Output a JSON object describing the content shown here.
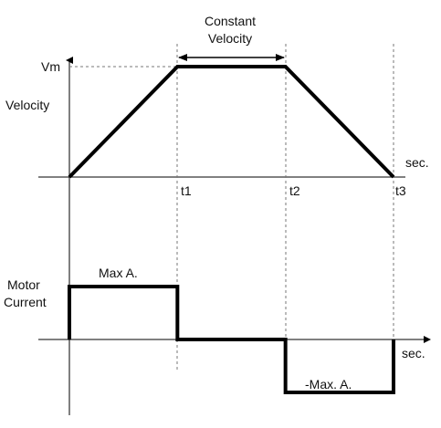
{
  "chart_data": [
    {
      "type": "line",
      "title": "",
      "xlabel": "sec.",
      "ylabel": "Velocity",
      "x_ticks": [
        "t1",
        "t2",
        "t3"
      ],
      "y_ticks": [
        "Vm"
      ],
      "series": [
        {
          "x": [
            0,
            1,
            2,
            3
          ],
          "y": [
            0,
            1,
            1,
            0
          ]
        }
      ],
      "annotations": [
        {
          "text": "Constant\nVelocity",
          "from": 1,
          "to": 2
        }
      ],
      "grid": false
    },
    {
      "type": "line",
      "title": "",
      "xlabel": "sec.",
      "ylabel": "Motor\nCurrent",
      "series": [
        {
          "x": [
            0,
            0,
            1,
            1,
            2,
            2,
            3,
            3
          ],
          "y": [
            0,
            1,
            1,
            0,
            0,
            -1,
            -1,
            0
          ]
        }
      ],
      "annotations": [
        {
          "text": "Max A.",
          "segment": "positive"
        },
        {
          "text": "-Max. A.",
          "segment": "negative"
        }
      ],
      "grid": false
    }
  ],
  "labels": {
    "vm": "Vm",
    "velocity": "Velocity",
    "constant_line1": "Constant",
    "constant_line2": "Velocity",
    "sec_top": "sec.",
    "t1": "t1",
    "t2": "t2",
    "t3": "t3",
    "motor_line1": "Motor",
    "motor_line2": "Current",
    "max_a": "Max A.",
    "neg_max_a": "-Max. A.",
    "sec_bottom": "sec."
  }
}
